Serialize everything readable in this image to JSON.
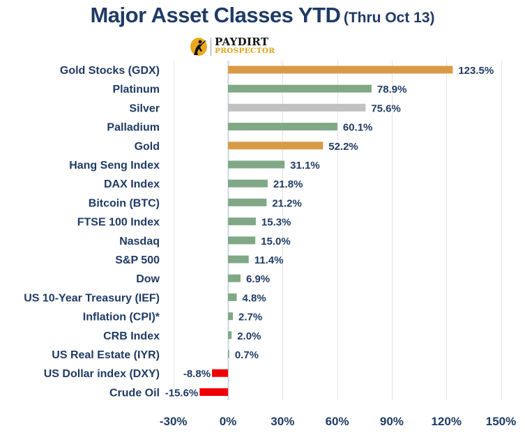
{
  "header": {
    "title": "Major Asset Classes YTD",
    "subtitle": "(Thru Oct 13)"
  },
  "logo": {
    "icon": "miner-icon",
    "line1": "PAYDIRT",
    "line2": "PROSPECTOR",
    "colors": {
      "dark": "#111111",
      "gold": "#e0a418"
    }
  },
  "chart_data": {
    "type": "bar",
    "orientation": "horizontal",
    "title": "Major Asset Classes YTD (Thru Oct 13)",
    "xlabel": "",
    "ylabel": "",
    "xlim": [
      -30,
      150
    ],
    "xticks": [
      -30,
      0,
      30,
      60,
      90,
      120,
      150
    ],
    "xtick_labels": [
      "-30%",
      "0%",
      "30%",
      "60%",
      "90%",
      "120%",
      "150%"
    ],
    "grid": "vertical",
    "legend": "none",
    "categories": [
      "Gold Stocks (GDX)",
      "Platinum",
      "Silver",
      "Palladium",
      "Gold",
      "Hang Seng Index",
      "DAX Index",
      "Bitcoin (BTC)",
      "FTSE 100 Index",
      "Nasdaq",
      "S&P 500",
      "Dow",
      "US 10-Year Treasury (IEF)",
      "Inflation (CPI)*",
      "CRB Index",
      "US Real Estate (IYR)",
      "US Dollar index (DXY)",
      "Crude Oil"
    ],
    "values": [
      123.5,
      78.9,
      75.6,
      60.1,
      52.2,
      31.1,
      21.8,
      21.2,
      15.3,
      15.0,
      11.4,
      6.9,
      4.8,
      2.7,
      2.0,
      0.7,
      -8.8,
      -15.6
    ],
    "value_labels": [
      "123.5%",
      "78.9%",
      "75.6%",
      "60.1%",
      "52.2%",
      "31.1%",
      "21.8%",
      "21.2%",
      "15.3%",
      "15.0%",
      "11.4%",
      "6.9%",
      "4.8%",
      "2.7%",
      "2.0%",
      "0.7%",
      "-8.8%",
      "-15.6%"
    ],
    "bar_colors": [
      "#d99a46",
      "#80a886",
      "#c1c1c1",
      "#80a886",
      "#d99a46",
      "#80a886",
      "#80a886",
      "#80a886",
      "#80a886",
      "#80a886",
      "#80a886",
      "#80a886",
      "#80a886",
      "#80a886",
      "#80a886",
      "#80a886",
      "#ee0000",
      "#ee0000"
    ]
  }
}
